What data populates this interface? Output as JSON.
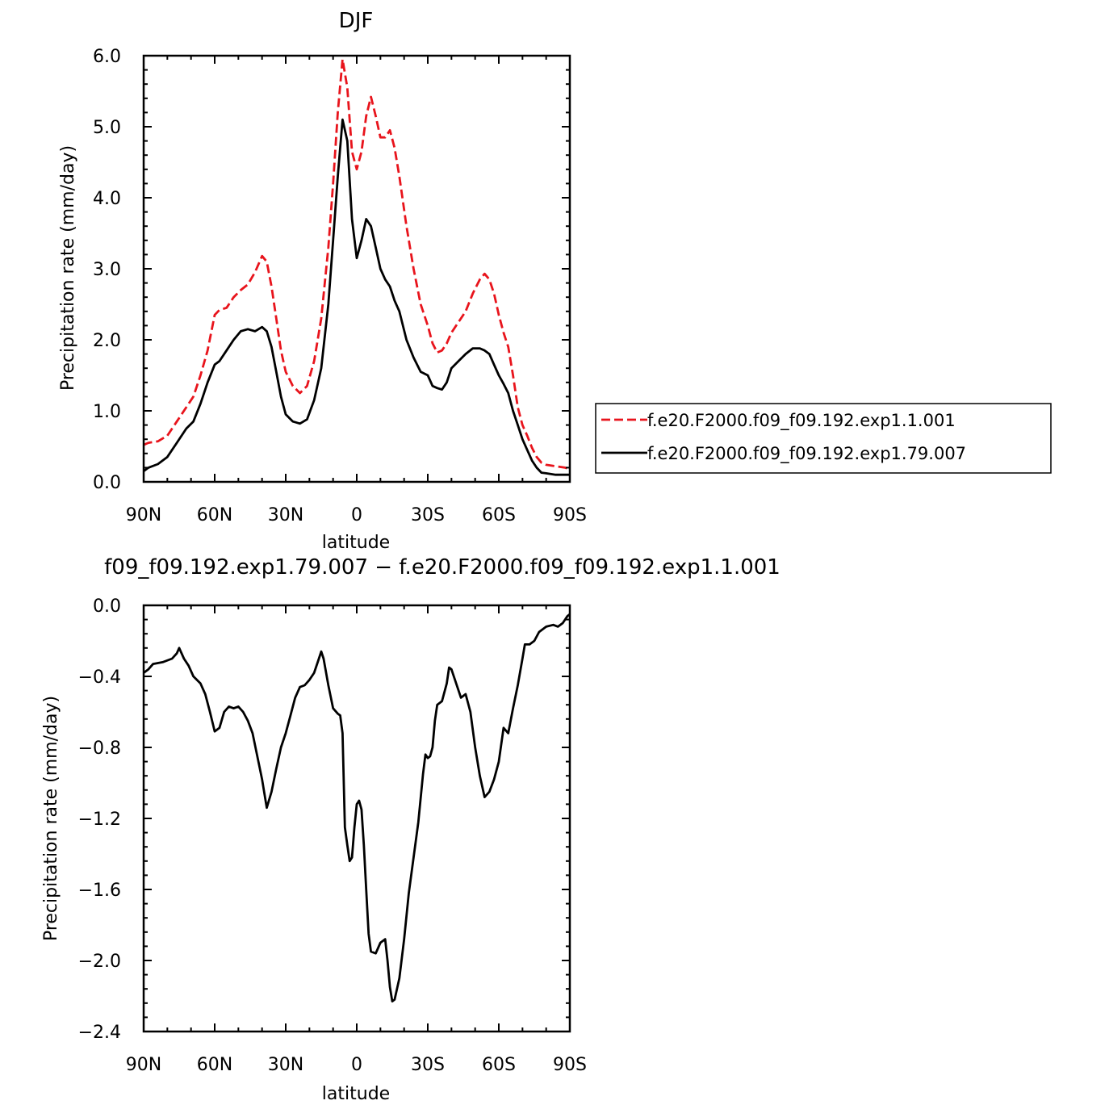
{
  "chart_data": [
    {
      "type": "line",
      "title": "DJF",
      "xlabel": "latitude",
      "ylabel": "Precipitation rate (mm/day)",
      "xlim": [
        -90,
        90
      ],
      "ylim": [
        0,
        6
      ],
      "xtick_values": [
        -90,
        -60,
        -30,
        0,
        30,
        60,
        90
      ],
      "xtick_labels": [
        "90N",
        "60N",
        "30N",
        "0",
        "30S",
        "60S",
        "90S"
      ],
      "ytick_values": [
        0,
        1,
        2,
        3,
        4,
        5,
        6
      ],
      "ytick_labels": [
        "0.0",
        "1.0",
        "2.0",
        "3.0",
        "4.0",
        "5.0",
        "6.0"
      ],
      "legend_position": "right",
      "series": [
        {
          "name": "f.e20.F2000.f09_f09.192.exp1.1.001",
          "color": "#e8141c",
          "dash": "dashed",
          "points": [
            [
              -90,
              0.52
            ],
            [
              -88,
              0.55
            ],
            [
              -84,
              0.57
            ],
            [
              -80,
              0.65
            ],
            [
              -76,
              0.85
            ],
            [
              -72,
              1.05
            ],
            [
              -69,
              1.2
            ],
            [
              -66,
              1.5
            ],
            [
              -63,
              1.85
            ],
            [
              -60,
              2.35
            ],
            [
              -58,
              2.42
            ],
            [
              -55,
              2.45
            ],
            [
              -52,
              2.6
            ],
            [
              -49,
              2.7
            ],
            [
              -46,
              2.78
            ],
            [
              -43,
              2.95
            ],
            [
              -40,
              3.18
            ],
            [
              -38,
              3.1
            ],
            [
              -36,
              2.75
            ],
            [
              -34,
              2.3
            ],
            [
              -32,
              1.85
            ],
            [
              -30,
              1.55
            ],
            [
              -27,
              1.35
            ],
            [
              -24,
              1.25
            ],
            [
              -21,
              1.35
            ],
            [
              -18,
              1.7
            ],
            [
              -15,
              2.3
            ],
            [
              -12,
              3.3
            ],
            [
              -10,
              4.2
            ],
            [
              -8,
              5.2
            ],
            [
              -6,
              5.95
            ],
            [
              -4,
              5.55
            ],
            [
              -2,
              4.65
            ],
            [
              0,
              4.4
            ],
            [
              2,
              4.65
            ],
            [
              4,
              5.15
            ],
            [
              6,
              5.42
            ],
            [
              8,
              5.15
            ],
            [
              10,
              4.85
            ],
            [
              12,
              4.85
            ],
            [
              14,
              4.95
            ],
            [
              16,
              4.7
            ],
            [
              18,
              4.3
            ],
            [
              21,
              3.6
            ],
            [
              24,
              3.0
            ],
            [
              27,
              2.5
            ],
            [
              30,
              2.2
            ],
            [
              32,
              1.95
            ],
            [
              34,
              1.82
            ],
            [
              36,
              1.85
            ],
            [
              38,
              1.95
            ],
            [
              40,
              2.1
            ],
            [
              43,
              2.25
            ],
            [
              46,
              2.4
            ],
            [
              49,
              2.65
            ],
            [
              52,
              2.85
            ],
            [
              54,
              2.93
            ],
            [
              56,
              2.85
            ],
            [
              58,
              2.65
            ],
            [
              60,
              2.35
            ],
            [
              62,
              2.1
            ],
            [
              64,
              1.9
            ],
            [
              66,
              1.5
            ],
            [
              68,
              1.05
            ],
            [
              70,
              0.8
            ],
            [
              72,
              0.65
            ],
            [
              74,
              0.48
            ],
            [
              76,
              0.35
            ],
            [
              78,
              0.27
            ],
            [
              80,
              0.24
            ],
            [
              84,
              0.22
            ],
            [
              88,
              0.2
            ],
            [
              90,
              0.18
            ]
          ]
        },
        {
          "name": "f.e20.F2000.f09_f09.192.exp1.79.007",
          "color": "#000000",
          "dash": "solid",
          "points": [
            [
              -90,
              0.15
            ],
            [
              -88,
              0.2
            ],
            [
              -84,
              0.25
            ],
            [
              -80,
              0.35
            ],
            [
              -76,
              0.55
            ],
            [
              -72,
              0.75
            ],
            [
              -69,
              0.85
            ],
            [
              -66,
              1.1
            ],
            [
              -63,
              1.4
            ],
            [
              -60,
              1.65
            ],
            [
              -58,
              1.7
            ],
            [
              -55,
              1.85
            ],
            [
              -52,
              2.0
            ],
            [
              -49,
              2.12
            ],
            [
              -46,
              2.15
            ],
            [
              -43,
              2.12
            ],
            [
              -40,
              2.18
            ],
            [
              -38,
              2.12
            ],
            [
              -36,
              1.9
            ],
            [
              -34,
              1.55
            ],
            [
              -32,
              1.2
            ],
            [
              -30,
              0.95
            ],
            [
              -27,
              0.85
            ],
            [
              -24,
              0.82
            ],
            [
              -21,
              0.88
            ],
            [
              -18,
              1.15
            ],
            [
              -15,
              1.6
            ],
            [
              -12,
              2.5
            ],
            [
              -10,
              3.4
            ],
            [
              -8,
              4.3
            ],
            [
              -6,
              5.1
            ],
            [
              -4,
              4.8
            ],
            [
              -2,
              3.7
            ],
            [
              0,
              3.15
            ],
            [
              2,
              3.4
            ],
            [
              4,
              3.7
            ],
            [
              6,
              3.6
            ],
            [
              8,
              3.3
            ],
            [
              10,
              3.0
            ],
            [
              12,
              2.85
            ],
            [
              14,
              2.75
            ],
            [
              16,
              2.55
            ],
            [
              18,
              2.4
            ],
            [
              21,
              2.0
            ],
            [
              24,
              1.75
            ],
            [
              27,
              1.55
            ],
            [
              30,
              1.5
            ],
            [
              32,
              1.35
            ],
            [
              34,
              1.32
            ],
            [
              36,
              1.3
            ],
            [
              38,
              1.4
            ],
            [
              40,
              1.6
            ],
            [
              43,
              1.7
            ],
            [
              46,
              1.8
            ],
            [
              49,
              1.88
            ],
            [
              52,
              1.88
            ],
            [
              54,
              1.85
            ],
            [
              56,
              1.8
            ],
            [
              58,
              1.65
            ],
            [
              60,
              1.5
            ],
            [
              62,
              1.38
            ],
            [
              64,
              1.25
            ],
            [
              66,
              1.0
            ],
            [
              68,
              0.8
            ],
            [
              70,
              0.6
            ],
            [
              72,
              0.45
            ],
            [
              74,
              0.3
            ],
            [
              76,
              0.2
            ],
            [
              78,
              0.13
            ],
            [
              80,
              0.12
            ],
            [
              84,
              0.1
            ],
            [
              88,
              0.1
            ],
            [
              90,
              0.1
            ]
          ]
        }
      ]
    },
    {
      "type": "line",
      "title": "f09_f09.192.exp1.79.007 − f.e20.F2000.f09_f09.192.exp1.1.001",
      "xlabel": "latitude",
      "ylabel": "Precipitation rate (mm/day)",
      "xlim": [
        -90,
        90
      ],
      "ylim": [
        -2.4,
        0
      ],
      "xtick_values": [
        -90,
        -60,
        -30,
        0,
        30,
        60,
        90
      ],
      "xtick_labels": [
        "90N",
        "60N",
        "30N",
        "0",
        "30S",
        "60S",
        "90S"
      ],
      "ytick_values": [
        0,
        -0.4,
        -0.8,
        -1.2,
        -1.6,
        -2.0,
        -2.4
      ],
      "ytick_labels": [
        "0.0",
        "−0.4",
        "−0.8",
        "−1.2",
        "−1.6",
        "−2.0",
        "−2.4"
      ],
      "series": [
        {
          "color": "#000000",
          "dash": "solid",
          "points": [
            [
              -90,
              -0.38
            ],
            [
              -88,
              -0.36
            ],
            [
              -86,
              -0.33
            ],
            [
              -82,
              -0.32
            ],
            [
              -78,
              -0.3
            ],
            [
              -76,
              -0.27
            ],
            [
              -75,
              -0.24
            ],
            [
              -73,
              -0.3
            ],
            [
              -71,
              -0.34
            ],
            [
              -69,
              -0.4
            ],
            [
              -66,
              -0.44
            ],
            [
              -64,
              -0.5
            ],
            [
              -62,
              -0.6
            ],
            [
              -60,
              -0.71
            ],
            [
              -58,
              -0.69
            ],
            [
              -56,
              -0.6
            ],
            [
              -54,
              -0.57
            ],
            [
              -52,
              -0.58
            ],
            [
              -50,
              -0.57
            ],
            [
              -48,
              -0.6
            ],
            [
              -46,
              -0.65
            ],
            [
              -44,
              -0.72
            ],
            [
              -42,
              -0.85
            ],
            [
              -40,
              -0.98
            ],
            [
              -38,
              -1.14
            ],
            [
              -36,
              -1.05
            ],
            [
              -34,
              -0.92
            ],
            [
              -32,
              -0.8
            ],
            [
              -30,
              -0.72
            ],
            [
              -28,
              -0.62
            ],
            [
              -26,
              -0.52
            ],
            [
              -24,
              -0.46
            ],
            [
              -22,
              -0.45
            ],
            [
              -20,
              -0.42
            ],
            [
              -18,
              -0.38
            ],
            [
              -16,
              -0.3
            ],
            [
              -15,
              -0.26
            ],
            [
              -14,
              -0.3
            ],
            [
              -12,
              -0.45
            ],
            [
              -10,
              -0.58
            ],
            [
              -8,
              -0.61
            ],
            [
              -7,
              -0.62
            ],
            [
              -6,
              -0.72
            ],
            [
              -5,
              -1.25
            ],
            [
              -4,
              -1.35
            ],
            [
              -3,
              -1.44
            ],
            [
              -2,
              -1.42
            ],
            [
              -1,
              -1.25
            ],
            [
              0,
              -1.12
            ],
            [
              1,
              -1.1
            ],
            [
              2,
              -1.15
            ],
            [
              3,
              -1.35
            ],
            [
              4,
              -1.6
            ],
            [
              5,
              -1.85
            ],
            [
              6,
              -1.95
            ],
            [
              8,
              -1.96
            ],
            [
              10,
              -1.9
            ],
            [
              12,
              -1.88
            ],
            [
              13,
              -2.0
            ],
            [
              14,
              -2.15
            ],
            [
              15,
              -2.23
            ],
            [
              16,
              -2.22
            ],
            [
              18,
              -2.1
            ],
            [
              20,
              -1.88
            ],
            [
              22,
              -1.62
            ],
            [
              24,
              -1.42
            ],
            [
              26,
              -1.22
            ],
            [
              28,
              -0.95
            ],
            [
              29,
              -0.84
            ],
            [
              30,
              -0.86
            ],
            [
              31,
              -0.85
            ],
            [
              32,
              -0.8
            ],
            [
              33,
              -0.65
            ],
            [
              34,
              -0.56
            ],
            [
              36,
              -0.54
            ],
            [
              38,
              -0.44
            ],
            [
              39,
              -0.35
            ],
            [
              40,
              -0.36
            ],
            [
              42,
              -0.44
            ],
            [
              44,
              -0.52
            ],
            [
              46,
              -0.5
            ],
            [
              48,
              -0.6
            ],
            [
              50,
              -0.8
            ],
            [
              52,
              -0.96
            ],
            [
              54,
              -1.08
            ],
            [
              56,
              -1.05
            ],
            [
              58,
              -0.98
            ],
            [
              60,
              -0.88
            ],
            [
              62,
              -0.69
            ],
            [
              64,
              -0.72
            ],
            [
              66,
              -0.58
            ],
            [
              68,
              -0.45
            ],
            [
              70,
              -0.3
            ],
            [
              71,
              -0.22
            ],
            [
              73,
              -0.22
            ],
            [
              75,
              -0.2
            ],
            [
              77,
              -0.15
            ],
            [
              80,
              -0.12
            ],
            [
              83,
              -0.11
            ],
            [
              85,
              -0.12
            ],
            [
              87,
              -0.1
            ],
            [
              89,
              -0.06
            ],
            [
              90,
              -0.05
            ]
          ]
        }
      ]
    }
  ]
}
